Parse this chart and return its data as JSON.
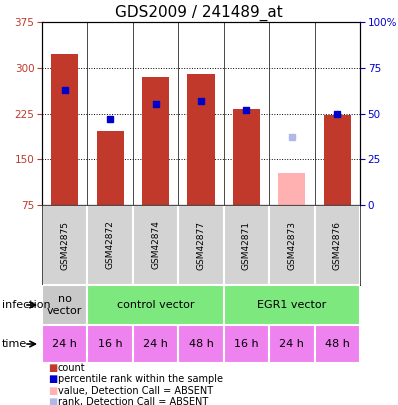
{
  "title": "GDS2009 / 241489_at",
  "samples": [
    "GSM42875",
    "GSM42872",
    "GSM42874",
    "GSM42877",
    "GSM42871",
    "GSM42873",
    "GSM42876"
  ],
  "count_values": [
    323,
    197,
    285,
    289,
    233,
    null,
    222
  ],
  "absent_count": [
    null,
    null,
    null,
    null,
    null,
    127,
    null
  ],
  "rank_pct": [
    63,
    47,
    55,
    57,
    52,
    null,
    50
  ],
  "absent_rank_pct": [
    null,
    null,
    null,
    null,
    null,
    37,
    null
  ],
  "ylim_left": [
    75,
    375
  ],
  "yticks_left": [
    75,
    150,
    225,
    300,
    375
  ],
  "ylim_right": [
    0,
    100
  ],
  "yticks_right": [
    0,
    25,
    50,
    75,
    100
  ],
  "time_labels": [
    "24 h",
    "16 h",
    "24 h",
    "48 h",
    "16 h",
    "24 h",
    "48 h"
  ],
  "time_color": "#ee82ee",
  "bar_color": "#c0392b",
  "rank_color": "#0000cc",
  "absent_bar_color": "#ffb0b0",
  "absent_rank_color": "#b0b8e8",
  "grid_color": "#808080",
  "left_axis_color": "#c0392b",
  "right_axis_color": "#0000cc",
  "infection_groups": [
    {
      "label": "no\nvector",
      "start": 0,
      "end": 1,
      "color": "#c8c8c8"
    },
    {
      "label": "control vector",
      "start": 1,
      "end": 4,
      "color": "#7de87d"
    },
    {
      "label": "EGR1 vector",
      "start": 4,
      "end": 7,
      "color": "#7de87d"
    }
  ],
  "legend_items": [
    {
      "color": "#c0392b",
      "label": "count"
    },
    {
      "color": "#0000cc",
      "label": "percentile rank within the sample"
    },
    {
      "color": "#ffb0b0",
      "label": "value, Detection Call = ABSENT"
    },
    {
      "color": "#b0b8e8",
      "label": "rank, Detection Call = ABSENT"
    }
  ]
}
